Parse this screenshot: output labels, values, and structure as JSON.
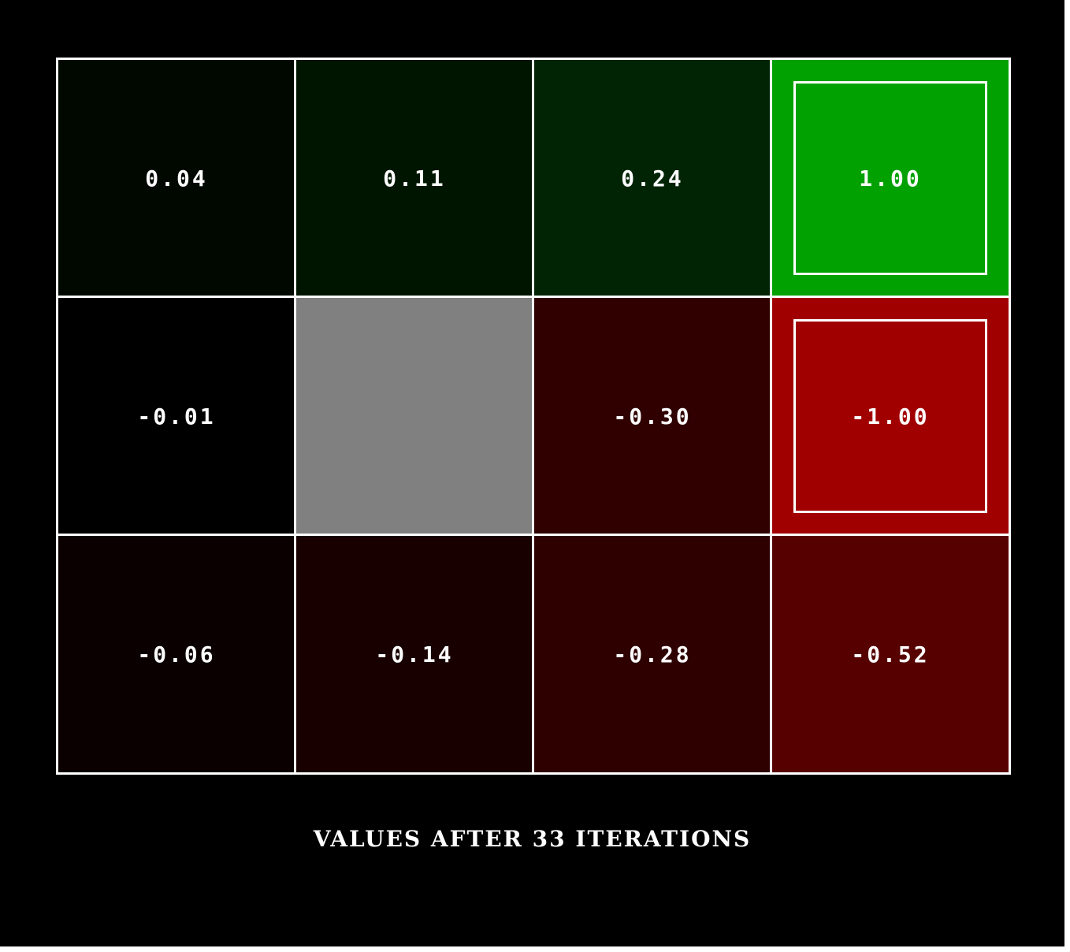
{
  "gridworld": {
    "rows": 3,
    "cols": 4,
    "cells": [
      {
        "row": 0,
        "col": 0,
        "value": "0.04",
        "color": "#000800",
        "terminal": false,
        "wall": false
      },
      {
        "row": 0,
        "col": 1,
        "value": "0.11",
        "color": "#001500",
        "terminal": false,
        "wall": false
      },
      {
        "row": 0,
        "col": 2,
        "value": "0.24",
        "color": "#012504",
        "terminal": false,
        "wall": false
      },
      {
        "row": 0,
        "col": 3,
        "value": "1.00",
        "color": "#00a100",
        "terminal": true,
        "wall": false
      },
      {
        "row": 1,
        "col": 0,
        "value": "-0.01",
        "color": "#000000",
        "terminal": false,
        "wall": false
      },
      {
        "row": 1,
        "col": 1,
        "value": "",
        "color": "#808080",
        "terminal": false,
        "wall": true
      },
      {
        "row": 1,
        "col": 2,
        "value": "-0.30",
        "color": "#300000",
        "terminal": false,
        "wall": false
      },
      {
        "row": 1,
        "col": 3,
        "value": "-1.00",
        "color": "#a10000",
        "terminal": true,
        "wall": false
      },
      {
        "row": 2,
        "col": 0,
        "value": "-0.06",
        "color": "#0a0000",
        "terminal": false,
        "wall": false
      },
      {
        "row": 2,
        "col": 1,
        "value": "-0.14",
        "color": "#180000",
        "terminal": false,
        "wall": false
      },
      {
        "row": 2,
        "col": 2,
        "value": "-0.28",
        "color": "#2e0000",
        "terminal": false,
        "wall": false
      },
      {
        "row": 2,
        "col": 3,
        "value": "-0.52",
        "color": "#560000",
        "terminal": false,
        "wall": false
      }
    ]
  },
  "caption": "VALUES AFTER 33 ITERATIONS"
}
